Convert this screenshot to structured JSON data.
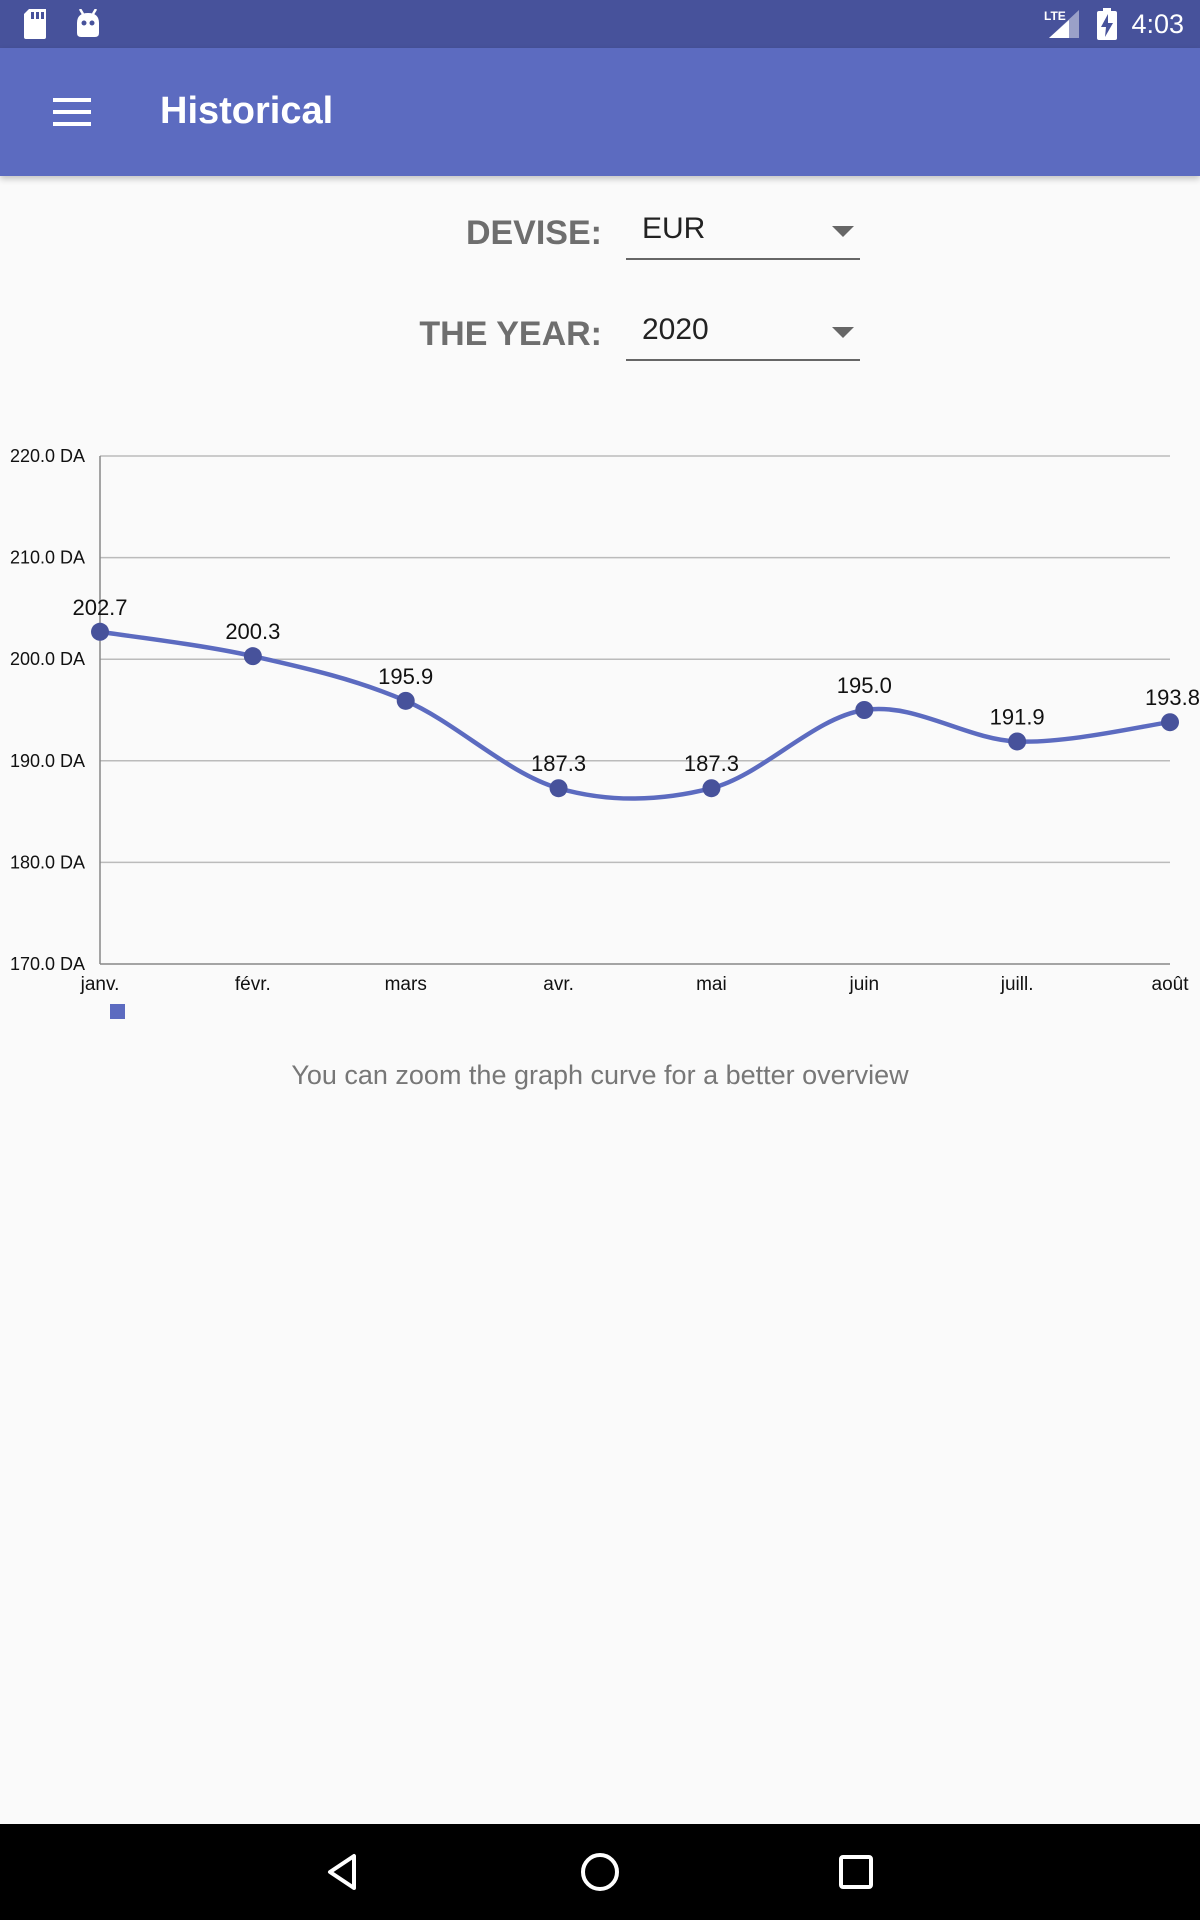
{
  "status_bar": {
    "time": "4:03",
    "network": "LTE",
    "icons": [
      "sd-card-icon",
      "android-icon",
      "signal-icon",
      "battery-charging-icon"
    ]
  },
  "app_bar": {
    "title": "Historical",
    "menu_icon": "hamburger-menu-icon"
  },
  "filters": {
    "currency_label": "DEVISE:",
    "currency_value": "EUR",
    "year_label": "THE YEAR:",
    "year_value": "2020"
  },
  "chart_data": {
    "type": "line",
    "categories": [
      "janv.",
      "févr.",
      "mars",
      "avr.",
      "mai",
      "juin",
      "juill.",
      "août"
    ],
    "values": [
      202.7,
      200.3,
      195.9,
      187.3,
      187.3,
      195.0,
      191.9,
      193.8
    ],
    "value_labels": [
      "202.7",
      "200.3",
      "195.9",
      "187.3",
      "187.3",
      "195.0",
      "191.9",
      "193.8"
    ],
    "y_ticks": [
      "220.0 DA",
      "210.0 DA",
      "200.0 DA",
      "190.0 DA",
      "180.0 DA",
      "170.0 DA"
    ],
    "ylim": [
      170,
      220
    ],
    "grid": true,
    "legend": "bottom-left",
    "series_color": "#5c6bc0",
    "point_color": "#47529b"
  },
  "hint": "You can zoom the graph curve for a better overview",
  "nav_bar": {
    "buttons": [
      "back-icon",
      "home-icon",
      "recents-icon"
    ]
  }
}
